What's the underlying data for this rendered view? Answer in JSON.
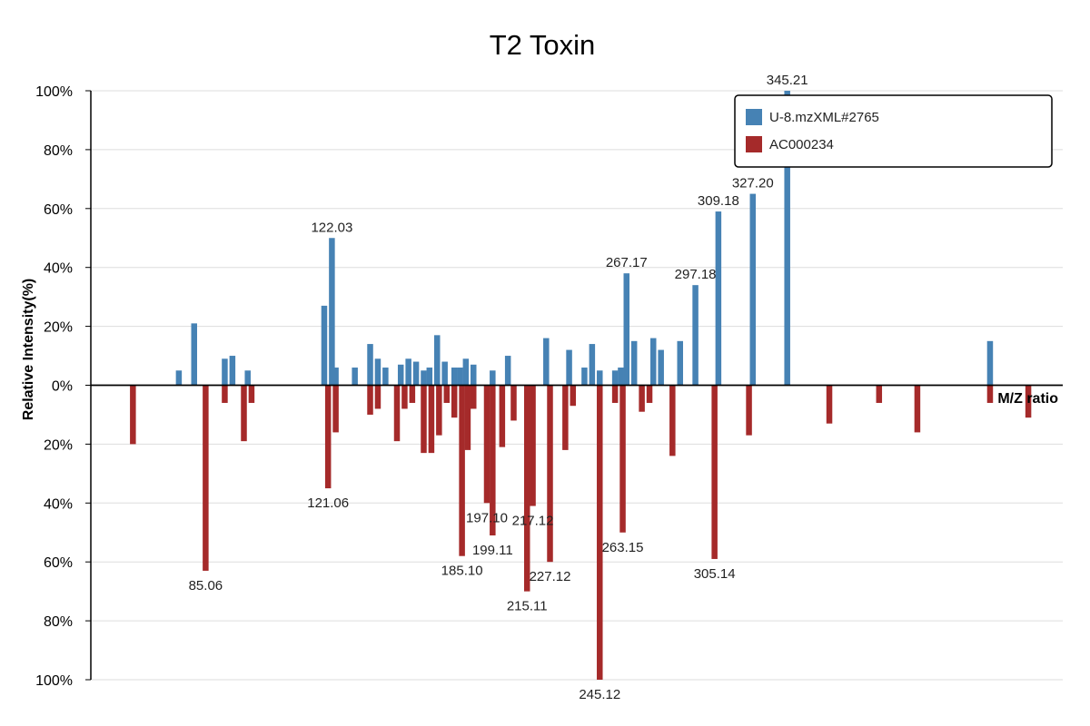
{
  "chart_data": {
    "type": "bar",
    "title": "T2 Toxin",
    "xlabel": "M/Z ratio",
    "ylabel": "Relative Intensity(%)",
    "ylim": [
      -100,
      100
    ],
    "y_ticks": [
      "100%",
      "80%",
      "60%",
      "40%",
      "20%",
      "0%",
      "20%",
      "40%",
      "60%",
      "80%",
      "100%"
    ],
    "legend_position": "top-right",
    "grid": true,
    "series": [
      {
        "name": "U-8.mzXML#2765",
        "color": "#4682b4",
        "direction": "up",
        "peaks": [
          {
            "mz": 69.0,
            "intensity": 5
          },
          {
            "mz": 73.0,
            "intensity": 21
          },
          {
            "mz": 81.0,
            "intensity": 9
          },
          {
            "mz": 83.0,
            "intensity": 10
          },
          {
            "mz": 87.0,
            "intensity": 5
          },
          {
            "mz": 107.0,
            "intensity": 27
          },
          {
            "mz": 109.0,
            "intensity": 50,
            "label": "122.03"
          },
          {
            "mz": 110.0,
            "intensity": 6
          },
          {
            "mz": 115.0,
            "intensity": 6
          },
          {
            "mz": 119.0,
            "intensity": 14
          },
          {
            "mz": 121.0,
            "intensity": 9
          },
          {
            "mz": 123.0,
            "intensity": 6
          },
          {
            "mz": 127.0,
            "intensity": 7
          },
          {
            "mz": 129.0,
            "intensity": 9
          },
          {
            "mz": 131.0,
            "intensity": 8
          },
          {
            "mz": 133.0,
            "intensity": 5
          },
          {
            "mz": 134.5,
            "intensity": 6
          },
          {
            "mz": 136.5,
            "intensity": 17
          },
          {
            "mz": 138.5,
            "intensity": 8
          },
          {
            "mz": 141.0,
            "intensity": 6
          },
          {
            "mz": 142.5,
            "intensity": 6
          },
          {
            "mz": 144.0,
            "intensity": 9
          },
          {
            "mz": 146.0,
            "intensity": 7
          },
          {
            "mz": 151.0,
            "intensity": 5
          },
          {
            "mz": 155.0,
            "intensity": 10
          },
          {
            "mz": 165.0,
            "intensity": 16
          },
          {
            "mz": 171.0,
            "intensity": 12
          },
          {
            "mz": 175.0,
            "intensity": 6
          },
          {
            "mz": 177.0,
            "intensity": 14
          },
          {
            "mz": 179.0,
            "intensity": 5
          },
          {
            "mz": 183.0,
            "intensity": 5
          },
          {
            "mz": 184.5,
            "intensity": 6
          },
          {
            "mz": 186.0,
            "intensity": 38,
            "label": "267.17"
          },
          {
            "mz": 188.0,
            "intensity": 15
          },
          {
            "mz": 193.0,
            "intensity": 16
          },
          {
            "mz": 195.0,
            "intensity": 12
          },
          {
            "mz": 200.0,
            "intensity": 15
          },
          {
            "mz": 204.0,
            "intensity": 34,
            "label": "297.18"
          },
          {
            "mz": 210.0,
            "intensity": 59,
            "label": "309.18"
          },
          {
            "mz": 219.0,
            "intensity": 65,
            "label": "327.20"
          },
          {
            "mz": 228.0,
            "intensity": 100,
            "label": "345.21"
          },
          {
            "mz": 281.0,
            "intensity": 15
          }
        ]
      },
      {
        "name": "AC000234",
        "color": "#a52a2a",
        "direction": "down",
        "peaks": [
          {
            "mz": 57.0,
            "intensity": 20
          },
          {
            "mz": 76.0,
            "intensity": 63,
            "label": "85.06"
          },
          {
            "mz": 81.0,
            "intensity": 6
          },
          {
            "mz": 86.0,
            "intensity": 19
          },
          {
            "mz": 88.0,
            "intensity": 6
          },
          {
            "mz": 108.0,
            "intensity": 35,
            "label": "121.06"
          },
          {
            "mz": 110.0,
            "intensity": 16
          },
          {
            "mz": 119.0,
            "intensity": 10
          },
          {
            "mz": 121.0,
            "intensity": 8
          },
          {
            "mz": 126.0,
            "intensity": 19
          },
          {
            "mz": 128.0,
            "intensity": 8
          },
          {
            "mz": 130.0,
            "intensity": 6
          },
          {
            "mz": 133.0,
            "intensity": 23
          },
          {
            "mz": 135.0,
            "intensity": 23
          },
          {
            "mz": 137.0,
            "intensity": 17
          },
          {
            "mz": 139.0,
            "intensity": 6
          },
          {
            "mz": 141.0,
            "intensity": 11
          },
          {
            "mz": 143.0,
            "intensity": 58,
            "label": "185.10"
          },
          {
            "mz": 144.5,
            "intensity": 22
          },
          {
            "mz": 146.0,
            "intensity": 8
          },
          {
            "mz": 149.5,
            "intensity": 40,
            "label": "197.10"
          },
          {
            "mz": 151.0,
            "intensity": 51,
            "label": "199.11"
          },
          {
            "mz": 153.5,
            "intensity": 21
          },
          {
            "mz": 156.5,
            "intensity": 12
          },
          {
            "mz": 160.0,
            "intensity": 70,
            "label": "215.11"
          },
          {
            "mz": 161.5,
            "intensity": 41,
            "label": "217.12"
          },
          {
            "mz": 166.0,
            "intensity": 60,
            "label": "227.12"
          },
          {
            "mz": 170.0,
            "intensity": 22
          },
          {
            "mz": 172.0,
            "intensity": 7
          },
          {
            "mz": 179.0,
            "intensity": 100,
            "label": "245.12"
          },
          {
            "mz": 183.0,
            "intensity": 6
          },
          {
            "mz": 185.0,
            "intensity": 50,
            "label": "263.15"
          },
          {
            "mz": 190.0,
            "intensity": 9
          },
          {
            "mz": 192.0,
            "intensity": 6
          },
          {
            "mz": 198.0,
            "intensity": 24
          },
          {
            "mz": 209.0,
            "intensity": 59,
            "label": "305.14"
          },
          {
            "mz": 218.0,
            "intensity": 17
          },
          {
            "mz": 239.0,
            "intensity": 13
          },
          {
            "mz": 252.0,
            "intensity": 6
          },
          {
            "mz": 262.0,
            "intensity": 16
          },
          {
            "mz": 281.0,
            "intensity": 6
          },
          {
            "mz": 291.0,
            "intensity": 11
          }
        ]
      }
    ]
  }
}
